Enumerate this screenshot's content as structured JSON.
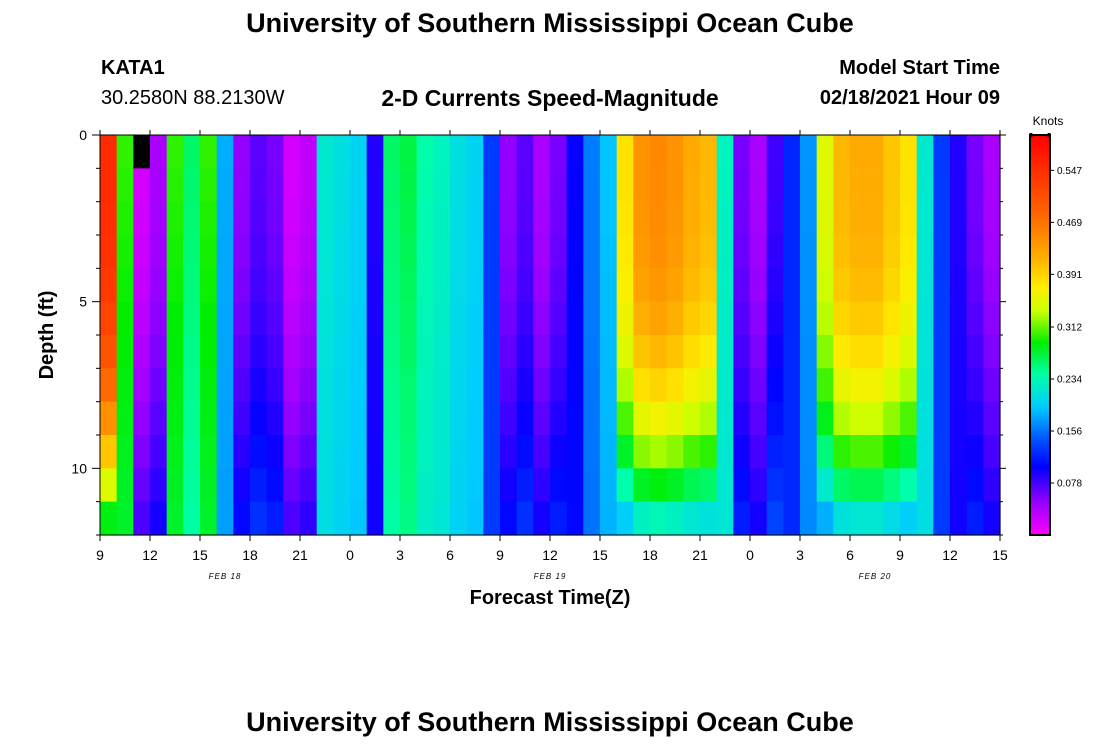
{
  "header": {
    "title": "University of Southern Mississippi Ocean Cube",
    "station_id": "KATA1",
    "coordinates": "30.2580N 88.2130W",
    "plot_title": "2-D Currents Speed-Magnitude",
    "model_start_label": "Model Start Time",
    "model_start_value": "02/18/2021 Hour 09"
  },
  "footer": {
    "title": "University of Southern Mississippi Ocean Cube"
  },
  "chart_data": {
    "type": "heatmap",
    "title": "2-D Currents Speed-Magnitude",
    "xlabel": "Forecast Time(Z)",
    "ylabel": "Depth (ft)",
    "colorbar_label": "Knots",
    "x_unit": "hours since 02/18/2021 09Z",
    "xlim": [
      0,
      54
    ],
    "ylim": [
      0,
      12
    ],
    "x_tick_values": [
      0,
      3,
      6,
      9,
      12,
      15,
      18,
      21,
      24,
      27,
      30,
      33,
      36,
      39,
      42,
      45,
      48,
      51,
      54
    ],
    "x_tick_labels": [
      "9",
      "12",
      "15",
      "18",
      "21",
      "0",
      "3",
      "6",
      "9",
      "12",
      "15",
      "18",
      "21",
      "0",
      "3",
      "6",
      "9",
      "12",
      "15"
    ],
    "y_tick_values": [
      0,
      5,
      10
    ],
    "y_tick_labels": [
      "0",
      "5",
      "10"
    ],
    "date_labels": [
      {
        "x": 7.5,
        "text": "FEB 18"
      },
      {
        "x": 27,
        "text": "FEB 19"
      },
      {
        "x": 46.5,
        "text": "FEB 20"
      }
    ],
    "colorbar": {
      "min": 0.0,
      "max": 0.6,
      "ticks": [
        0.078,
        0.156,
        0.234,
        0.312,
        0.391,
        0.469,
        0.547
      ],
      "tick_labels": [
        "0.078",
        "0.156",
        "0.234",
        "0.312",
        "0.391",
        "0.469",
        "0.547"
      ]
    },
    "depth_levels_ft": [
      0.5,
      1.5,
      2.5,
      3.5,
      4.5,
      5.5,
      6.5,
      7.5,
      8.5,
      9.5,
      10.5,
      11.5
    ],
    "surface_speed_profile": {
      "hours": [
        0,
        1,
        2,
        3,
        4,
        5,
        6,
        7,
        8,
        9,
        10,
        11,
        12,
        13,
        14,
        15,
        16,
        17,
        18,
        19,
        20,
        21,
        22,
        23,
        24,
        25,
        26,
        27,
        28,
        29,
        30,
        31,
        32,
        33,
        34,
        35,
        36,
        37,
        38,
        39,
        40,
        41,
        42,
        43,
        44,
        45,
        46,
        47,
        48,
        49,
        50,
        51,
        52,
        53,
        54
      ],
      "knots": [
        0.55,
        0.3,
        0.02,
        0.04,
        0.3,
        0.26,
        0.3,
        0.18,
        0.05,
        0.07,
        0.06,
        0.02,
        0.03,
        0.22,
        0.21,
        0.2,
        0.09,
        0.26,
        0.27,
        0.24,
        0.23,
        0.21,
        0.2,
        0.13,
        0.05,
        0.07,
        0.04,
        0.06,
        0.1,
        0.16,
        0.19,
        0.38,
        0.44,
        0.45,
        0.44,
        0.42,
        0.41,
        0.23,
        0.06,
        0.04,
        0.08,
        0.12,
        0.17,
        0.35,
        0.41,
        0.42,
        0.42,
        0.4,
        0.38,
        0.22,
        0.13,
        0.09,
        0.06,
        0.04,
        0.03
      ]
    },
    "missing_cells": [
      {
        "hour": 2,
        "depth_rows": [
          0
        ]
      }
    ]
  }
}
